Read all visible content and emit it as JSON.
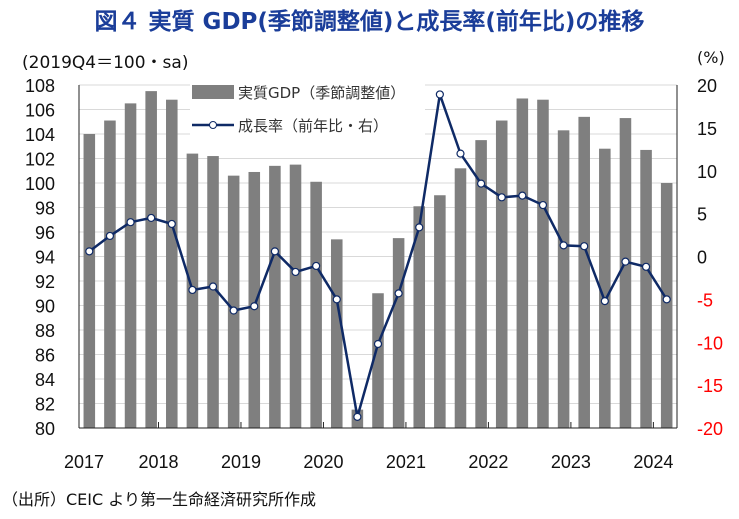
{
  "title": "図４ 実質 GDP(季節調整値)と成長率(前年比)の推移",
  "source": "（出所）CEIC より第一生命経済研究所作成",
  "chart_data": {
    "type": "bar+line",
    "left_unit": "(2019Q4＝100・sa)",
    "right_unit": "(%)",
    "x_tick_labels": [
      "2017",
      "2018",
      "2019",
      "2020",
      "2021",
      "2022",
      "2023",
      "2024"
    ],
    "y_left": {
      "lim": [
        80,
        108
      ],
      "ticks": [
        80,
        82,
        84,
        86,
        88,
        90,
        92,
        94,
        96,
        98,
        100,
        102,
        104,
        106,
        108
      ]
    },
    "y_right": {
      "lim": [
        -20,
        20
      ],
      "ticks": [
        -20,
        -15,
        -10,
        -5,
        0,
        5,
        10,
        15,
        20
      ],
      "negative_color": "#ff0000"
    },
    "grid": true,
    "legend_position": "top-center",
    "series": [
      {
        "name": "実質GDP（季節調整値）",
        "type": "bar",
        "axis": "left",
        "color": "#7f7f7f",
        "values": [
          104.0,
          105.1,
          106.5,
          107.5,
          106.8,
          102.4,
          102.2,
          100.6,
          100.9,
          101.4,
          101.5,
          100.1,
          95.4,
          81.5,
          91.0,
          95.5,
          98.1,
          99.0,
          101.2,
          103.5,
          105.1,
          106.9,
          106.8,
          104.3,
          105.4,
          102.8,
          105.3,
          102.7,
          100.0
        ]
      },
      {
        "name": "成長率（前年比・右）",
        "type": "line",
        "axis": "right",
        "color": "#0f2a66",
        "values": [
          0.6,
          2.4,
          4.0,
          4.5,
          3.8,
          -3.9,
          -3.5,
          -6.3,
          -5.8,
          0.6,
          -1.8,
          -1.1,
          -5.0,
          -18.7,
          -10.2,
          -4.3,
          3.4,
          18.9,
          12.0,
          8.5,
          6.9,
          7.1,
          6.0,
          1.3,
          1.2,
          -5.2,
          -0.6,
          -1.2,
          -5.0
        ]
      }
    ]
  }
}
